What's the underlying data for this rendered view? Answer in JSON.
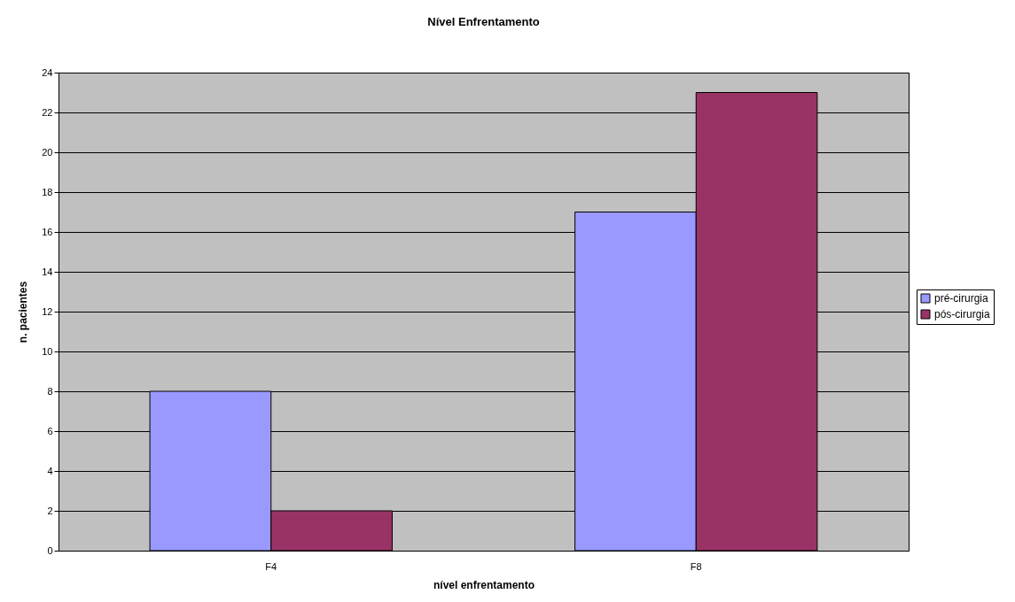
{
  "chart_data": {
    "type": "bar",
    "title": "Nível Enfrentamento",
    "xlabel": "nível enfrentamento",
    "ylabel": "n. pacientes",
    "categories": [
      "F4",
      "F8"
    ],
    "series": [
      {
        "name": "pré-cirurgia",
        "color": "#9999ff",
        "values": [
          8,
          17
        ]
      },
      {
        "name": "pós-cirurgia",
        "color": "#993366",
        "values": [
          2,
          23
        ]
      }
    ],
    "ylim": [
      0,
      24
    ],
    "yticks": [
      0,
      2,
      4,
      6,
      8,
      10,
      12,
      14,
      16,
      18,
      20,
      22,
      24
    ],
    "grid": "y",
    "legend": "right"
  }
}
